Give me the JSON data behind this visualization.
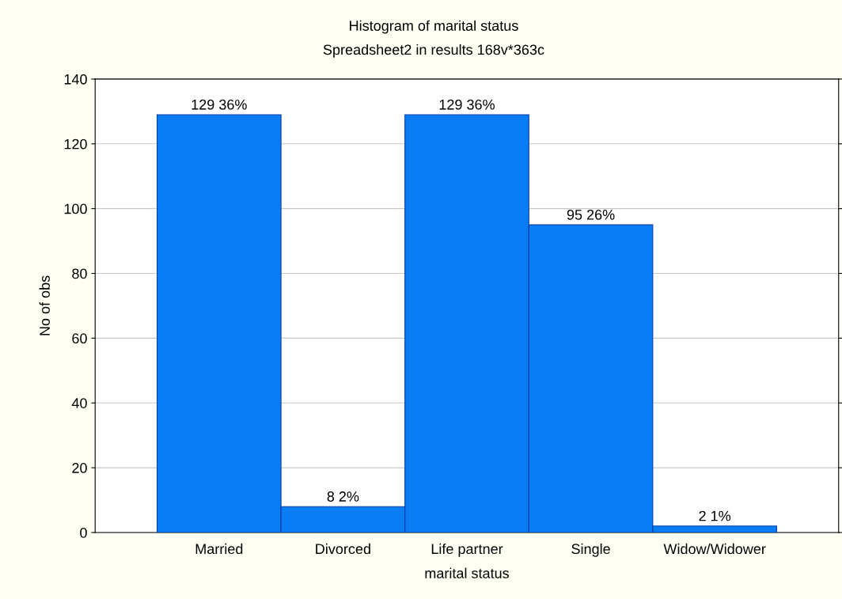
{
  "chart_data": {
    "type": "bar",
    "title": "Histogram of marital status",
    "subtitle": "Spreadsheet2 in results 168v*363c",
    "xlabel": "marital status",
    "ylabel": "No of obs",
    "categories": [
      "Married",
      "Divorced",
      "Life partner",
      "Single",
      "Widow/Widower"
    ],
    "values": [
      129,
      8,
      129,
      95,
      2
    ],
    "color": "#0a7df5",
    "value_labels": [
      "129 36%",
      "8 2%",
      "129 36%",
      "95 26%",
      "2 1%"
    ],
    "ylim": [
      0,
      140
    ],
    "yticks": [
      0,
      20,
      40,
      60,
      80,
      100,
      120,
      140
    ],
    "grid": "y"
  }
}
